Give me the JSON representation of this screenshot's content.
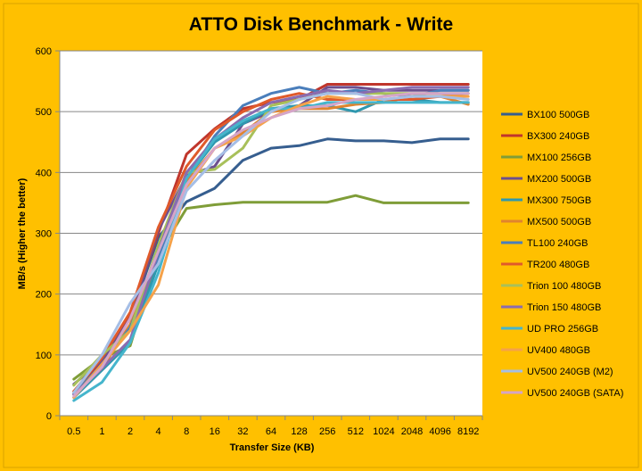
{
  "chart_data": {
    "type": "line",
    "title": "ATTO Disk Benchmark - Write",
    "xlabel": "Transfer Size (KB)",
    "ylabel": "MB/s (Higher the better)",
    "ylim": [
      0,
      600
    ],
    "yticks": [
      0,
      100,
      200,
      300,
      400,
      500,
      600
    ],
    "grid": "horizontal",
    "legend": "right",
    "categories": [
      "0.5",
      "1",
      "2",
      "4",
      "8",
      "16",
      "32",
      "64",
      "128",
      "256",
      "512",
      "1024",
      "2048",
      "4096",
      "8192"
    ],
    "series": [
      {
        "name": "BX100 500GB",
        "color": "#365e8f",
        "values": [
          37,
          88,
          160,
          293,
          352,
          374,
          420,
          440,
          444,
          455,
          452,
          452,
          449,
          455,
          455
        ]
      },
      {
        "name": "BX300 240GB",
        "color": "#c0362c",
        "values": [
          40,
          90,
          165,
          300,
          430,
          472,
          505,
          515,
          520,
          545,
          545,
          545,
          545,
          545,
          545
        ]
      },
      {
        "name": "MX100 256GB",
        "color": "#7f9d38",
        "values": [
          60,
          95,
          115,
          265,
          341,
          347,
          351,
          351,
          351,
          351,
          362,
          350,
          350,
          350,
          350
        ]
      },
      {
        "name": "MX200 500GB",
        "color": "#6c4f8e",
        "values": [
          52,
          90,
          160,
          305,
          395,
          410,
          480,
          500,
          510,
          540,
          540,
          535,
          535,
          535,
          535
        ]
      },
      {
        "name": "MX300 750GB",
        "color": "#2f98af",
        "values": [
          30,
          75,
          120,
          250,
          390,
          450,
          480,
          505,
          510,
          510,
          500,
          520,
          520,
          515,
          515
        ]
      },
      {
        "name": "MX500 500GB",
        "color": "#e0842e",
        "values": [
          35,
          78,
          150,
          260,
          385,
          440,
          465,
          500,
          505,
          505,
          512,
          515,
          525,
          525,
          512
        ]
      },
      {
        "name": "TL100 240GB",
        "color": "#4a7ebb",
        "values": [
          35,
          85,
          145,
          260,
          390,
          460,
          510,
          530,
          540,
          530,
          535,
          530,
          525,
          535,
          535
        ]
      },
      {
        "name": "TR200 480GB",
        "color": "#e05a2b",
        "values": [
          40,
          95,
          170,
          310,
          410,
          470,
          500,
          520,
          530,
          520,
          520,
          520,
          520,
          525,
          530
        ]
      },
      {
        "name": "Trion 100 480GB",
        "color": "#a8c05a",
        "values": [
          50,
          100,
          140,
          280,
          400,
          405,
          440,
          510,
          520,
          530,
          530,
          530,
          530,
          530,
          530
        ]
      },
      {
        "name": "Trion 150 480GB",
        "color": "#8a6cb0",
        "values": [
          35,
          78,
          125,
          270,
          400,
          455,
          490,
          515,
          525,
          535,
          530,
          535,
          540,
          540,
          540
        ]
      },
      {
        "name": "UD PRO 256GB",
        "color": "#45b5cc",
        "values": [
          25,
          55,
          120,
          235,
          390,
          455,
          485,
          505,
          505,
          515,
          515,
          515,
          515,
          515,
          515
        ]
      },
      {
        "name": "UV400 480GB",
        "color": "#f5a24a",
        "values": [
          30,
          85,
          140,
          215,
          375,
          440,
          460,
          490,
          510,
          525,
          520,
          520,
          525,
          525,
          525
        ]
      },
      {
        "name": "UV500 240GB (M2)",
        "color": "#a5bee6",
        "values": [
          38,
          100,
          185,
          250,
          370,
          420,
          460,
          500,
          520,
          530,
          530,
          520,
          525,
          525,
          520
        ]
      },
      {
        "name": "UV500 240GB (SATA)",
        "color": "#d5a5c8",
        "values": [
          32,
          80,
          160,
          270,
          380,
          440,
          470,
          490,
          505,
          510,
          520,
          525,
          530,
          530,
          530
        ]
      }
    ]
  }
}
